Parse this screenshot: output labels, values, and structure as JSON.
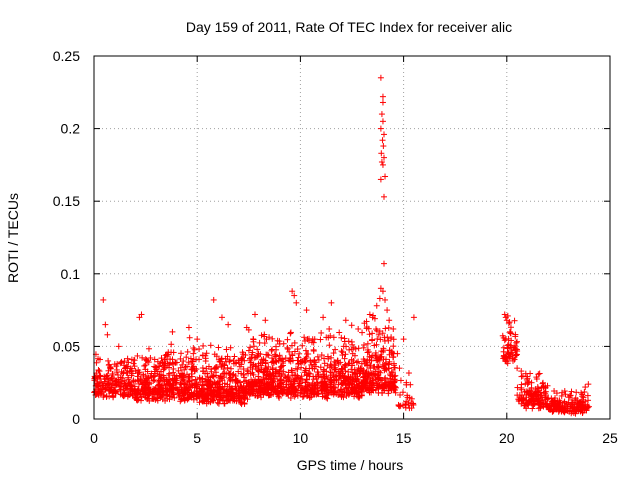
{
  "chart_data": {
    "type": "scatter",
    "title": "Day 159 of 2011, Rate Of TEC Index for receiver alic",
    "xlabel": "GPS time / hours",
    "ylabel": "ROTI / TECUs",
    "xlim": [
      0,
      25
    ],
    "ylim": [
      0,
      0.25
    ],
    "x_ticks": [
      0,
      5,
      10,
      15,
      20,
      25
    ],
    "x_tick_labels": [
      "0",
      "5",
      "10",
      "15",
      "20",
      "25"
    ],
    "y_ticks": [
      0,
      0.05,
      0.1,
      0.15,
      0.2,
      0.25
    ],
    "y_tick_labels": [
      "0",
      "0.05",
      "0.1",
      "0.15",
      "0.2",
      "0.25"
    ],
    "grid": true,
    "marker": "+",
    "marker_color": "#ff0000",
    "series": [
      {
        "name": "ROTI",
        "segments": [
          {
            "x_range": [
              0.0,
              2.0
            ],
            "base": 0.022,
            "spread": 0.02,
            "count": 220
          },
          {
            "x_range": [
              2.0,
              5.0
            ],
            "base": 0.02,
            "spread": 0.025,
            "count": 420
          },
          {
            "x_range": [
              5.0,
              7.5
            ],
            "base": 0.018,
            "spread": 0.025,
            "count": 380
          },
          {
            "x_range": [
              7.5,
              10.5
            ],
            "base": 0.022,
            "spread": 0.03,
            "count": 460
          },
          {
            "x_range": [
              10.5,
              13.0
            ],
            "base": 0.022,
            "spread": 0.03,
            "count": 360
          },
          {
            "x_range": [
              13.0,
              14.6
            ],
            "base": 0.025,
            "spread": 0.035,
            "count": 260
          },
          {
            "x_range": [
              14.6,
              15.5
            ],
            "base": 0.012,
            "spread": 0.015,
            "count": 30
          },
          {
            "x_range": [
              19.8,
              20.5
            ],
            "base": 0.045,
            "spread": 0.02,
            "count": 60
          },
          {
            "x_range": [
              20.5,
              22.0
            ],
            "base": 0.015,
            "spread": 0.015,
            "count": 140
          },
          {
            "x_range": [
              22.0,
              24.0
            ],
            "base": 0.011,
            "spread": 0.01,
            "count": 160
          }
        ],
        "points": [
          [
            0.05,
            0.019
          ],
          [
            0.15,
            0.024
          ],
          [
            0.3,
            0.03
          ],
          [
            0.45,
            0.082
          ],
          [
            0.55,
            0.065
          ],
          [
            0.65,
            0.058
          ],
          [
            1.2,
            0.05
          ],
          [
            2.2,
            0.07
          ],
          [
            2.3,
            0.072
          ],
          [
            3.8,
            0.06
          ],
          [
            4.6,
            0.063
          ],
          [
            5.0,
            0.055
          ],
          [
            5.8,
            0.082
          ],
          [
            6.2,
            0.07
          ],
          [
            6.5,
            0.065
          ],
          [
            7.4,
            0.063
          ],
          [
            7.8,
            0.072
          ],
          [
            8.3,
            0.068
          ],
          [
            9.6,
            0.088
          ],
          [
            9.7,
            0.085
          ],
          [
            9.8,
            0.08
          ],
          [
            10.3,
            0.075
          ],
          [
            11.1,
            0.07
          ],
          [
            11.5,
            0.08
          ],
          [
            12.2,
            0.068
          ],
          [
            12.8,
            0.062
          ],
          [
            13.5,
            0.07
          ],
          [
            13.7,
            0.078
          ],
          [
            13.85,
            0.083
          ],
          [
            13.9,
            0.09
          ],
          [
            14.0,
            0.088
          ],
          [
            14.05,
            0.107
          ],
          [
            14.1,
            0.082
          ],
          [
            14.2,
            0.075
          ],
          [
            14.3,
            0.068
          ],
          [
            14.5,
            0.062
          ],
          [
            14.7,
            0.045
          ],
          [
            14.8,
            0.035
          ],
          [
            15.0,
            0.055
          ],
          [
            15.5,
            0.07
          ],
          [
            13.9,
            0.235
          ],
          [
            14.0,
            0.222
          ],
          [
            14.0,
            0.218
          ],
          [
            13.95,
            0.21
          ],
          [
            14.0,
            0.205
          ],
          [
            13.9,
            0.2
          ],
          [
            14.05,
            0.196
          ],
          [
            13.98,
            0.192
          ],
          [
            14.02,
            0.188
          ],
          [
            13.92,
            0.183
          ],
          [
            14.05,
            0.18
          ],
          [
            13.95,
            0.177
          ],
          [
            14.0,
            0.175
          ],
          [
            13.9,
            0.165
          ],
          [
            14.1,
            0.167
          ],
          [
            14.05,
            0.153
          ],
          [
            19.9,
            0.072
          ],
          [
            19.95,
            0.07
          ],
          [
            20.0,
            0.068
          ],
          [
            20.05,
            0.071
          ],
          [
            20.1,
            0.066
          ],
          [
            20.15,
            0.06
          ],
          [
            19.95,
            0.055
          ],
          [
            20.2,
            0.045
          ],
          [
            20.3,
            0.04
          ],
          [
            20.5,
            0.035
          ],
          [
            20.7,
            0.033
          ],
          [
            21.0,
            0.028
          ],
          [
            21.2,
            0.025
          ],
          [
            21.5,
            0.022
          ],
          [
            21.8,
            0.018
          ],
          [
            22.0,
            0.014
          ],
          [
            22.3,
            0.013
          ],
          [
            22.5,
            0.01
          ],
          [
            22.8,
            0.012
          ],
          [
            23.0,
            0.015
          ],
          [
            23.3,
            0.013
          ],
          [
            23.6,
            0.018
          ],
          [
            23.8,
            0.022
          ],
          [
            23.95,
            0.024
          ]
        ]
      }
    ]
  }
}
